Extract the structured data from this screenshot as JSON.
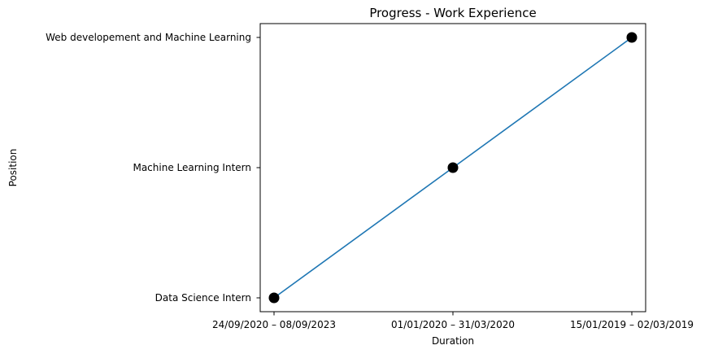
{
  "chart_data": {
    "type": "line",
    "title": "Progress - Work Experience",
    "xlabel": "Duration",
    "ylabel": "Position",
    "categories": [
      "24/09/2020 – 08/09/2023",
      "01/01/2020 – 31/03/2020",
      "15/01/2019 – 02/03/2019"
    ],
    "y_categories": [
      "Data Science Intern",
      "Machine Learning Intern",
      "Web developement and Machine Learning"
    ],
    "series": [
      {
        "values": [
          "Data Science Intern",
          "Machine Learning Intern",
          "Web developement and Machine Learning"
        ]
      }
    ],
    "grid": false,
    "legend": "none",
    "colors": {
      "line": "#1f77b4",
      "marker": "#000000"
    }
  }
}
